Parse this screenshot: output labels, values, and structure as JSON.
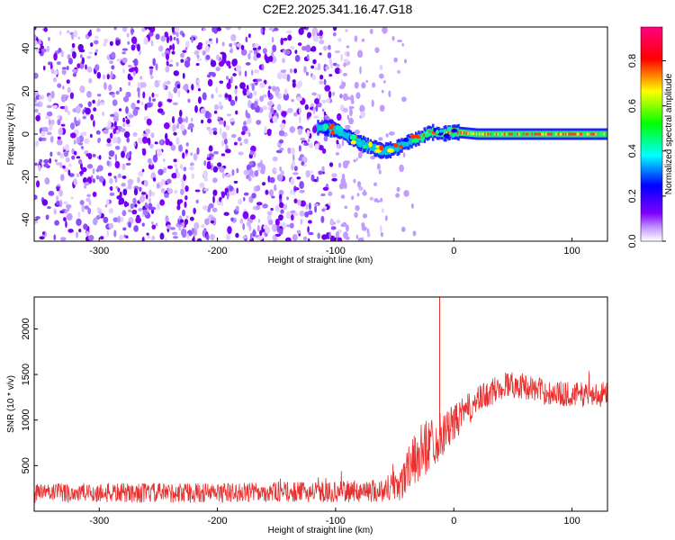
{
  "title": "C2E2.2025.341.16.47.G18",
  "chart_data": [
    {
      "type": "heatmap",
      "xlabel": "Height of straight line (km)",
      "ylabel": "Frequency (Hz)",
      "xlim": [
        -355,
        130
      ],
      "ylim": [
        -50,
        50
      ],
      "x_ticks": [
        -300,
        -200,
        -100,
        0,
        100
      ],
      "y_ticks": [
        -40,
        -20,
        0,
        20,
        40
      ],
      "colorbar": {
        "label": "Normalized spectral amplitude",
        "range": [
          0,
          0.95
        ],
        "ticks": [
          0.0,
          0.2,
          0.4,
          0.6,
          0.8
        ],
        "colors": [
          "#ffffff",
          "#7f00ff",
          "#0000ff",
          "#00ffff",
          "#00ff00",
          "#ffff00",
          "#ff0000",
          "#ff0080"
        ]
      },
      "noise_extent_x": [
        -355,
        -55
      ],
      "signal_track": [
        {
          "x": -110,
          "y": 3,
          "amp": 0.3
        },
        {
          "x": -100,
          "y": 2,
          "amp": 0.3
        },
        {
          "x": -90,
          "y": -1,
          "amp": 0.35
        },
        {
          "x": -80,
          "y": -4,
          "amp": 0.35
        },
        {
          "x": -70,
          "y": -6,
          "amp": 0.4
        },
        {
          "x": -60,
          "y": -8,
          "amp": 0.45
        },
        {
          "x": -50,
          "y": -7,
          "amp": 0.45
        },
        {
          "x": -40,
          "y": -4,
          "amp": 0.5
        },
        {
          "x": -30,
          "y": -2,
          "amp": 0.6
        },
        {
          "x": -20,
          "y": 1,
          "amp": 0.7
        },
        {
          "x": -10,
          "y": 0,
          "amp": 0.8
        },
        {
          "x": 0,
          "y": 1,
          "amp": 0.85
        },
        {
          "x": 20,
          "y": 0,
          "amp": 0.8
        },
        {
          "x": 50,
          "y": 0,
          "amp": 0.75
        },
        {
          "x": 80,
          "y": 0,
          "amp": 0.7
        },
        {
          "x": 110,
          "y": 0,
          "amp": 0.7
        },
        {
          "x": 130,
          "y": 0,
          "amp": 0.7
        }
      ]
    },
    {
      "type": "line",
      "xlabel": "Height of straight line (km)",
      "ylabel": "SNR (10 * v/v)",
      "xlim": [
        -355,
        130
      ],
      "ylim": [
        0,
        2350
      ],
      "x_ticks": [
        -300,
        -200,
        -100,
        0,
        100
      ],
      "y_ticks": [
        500,
        1000,
        1500,
        2000
      ],
      "line_color": "#e8302e",
      "series": [
        {
          "x": [
            -355,
            -300,
            -250,
            -200,
            -150,
            -100,
            -60,
            -45,
            -35,
            -25,
            -15,
            -5,
            5,
            15,
            25,
            35,
            45,
            60,
            80,
            100,
            130
          ],
          "mean": [
            200,
            200,
            200,
            200,
            210,
            210,
            230,
            320,
            520,
            700,
            800,
            900,
            1030,
            1150,
            1250,
            1330,
            1400,
            1370,
            1300,
            1280,
            1280
          ],
          "spread": [
            110,
            110,
            110,
            110,
            110,
            115,
            130,
            220,
            280,
            320,
            280,
            220,
            190,
            170,
            160,
            150,
            150,
            140,
            140,
            140,
            140
          ]
        }
      ],
      "spike": {
        "x": -12,
        "y": 2350
      }
    }
  ]
}
